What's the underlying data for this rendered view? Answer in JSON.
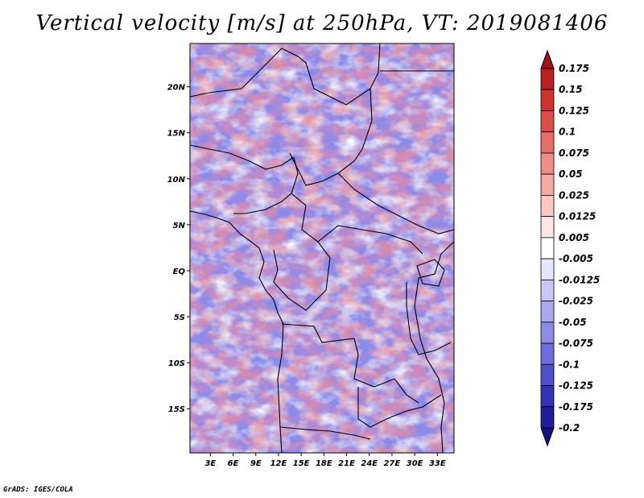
{
  "chart_data": {
    "type": "heatmap",
    "title": "Vertical velocity [m/s] at 250hPa, VT: 2019081406",
    "x_tick_labels": [
      "3E",
      "6E",
      "9E",
      "12E",
      "15E",
      "18E",
      "21E",
      "24E",
      "27E",
      "30E",
      "33E"
    ],
    "x_ticks": [
      3,
      6,
      9,
      12,
      15,
      18,
      21,
      24,
      27,
      30,
      33
    ],
    "xlim": [
      0.3,
      35.2
    ],
    "y_tick_labels": [
      "20N",
      "15N",
      "10N",
      "5N",
      "EQ",
      "5S",
      "10S",
      "15S"
    ],
    "y_ticks": [
      20,
      15,
      10,
      5,
      0,
      -5,
      -10,
      -15
    ],
    "ylim": [
      -19.8,
      24.7
    ],
    "colorbar": {
      "levels": [
        "0.175",
        "0.15",
        "0.125",
        "0.1",
        "0.075",
        "0.05",
        "0.025",
        "0.0125",
        "0.005",
        "-0.005",
        "-0.0125",
        "-0.025",
        "-0.05",
        "-0.075",
        "-0.1",
        "-0.125",
        "-0.175",
        "-0.2"
      ],
      "colors": [
        "#a0141a",
        "#b82024",
        "#cc3330",
        "#dc4c48",
        "#e66e68",
        "#ef8c86",
        "#f5aaa4",
        "#f9c9c5",
        "#fce6e4",
        "#ffffff",
        "#e6e6fa",
        "#c8c8f5",
        "#a8a8ee",
        "#8c8ce6",
        "#6e6ede",
        "#5050cc",
        "#3232b4",
        "#1e1e96",
        "#12127a"
      ]
    },
    "legend_placement": "right",
    "grid": false
  },
  "footer": {
    "credit": "GrADS: IGES/COLA"
  }
}
